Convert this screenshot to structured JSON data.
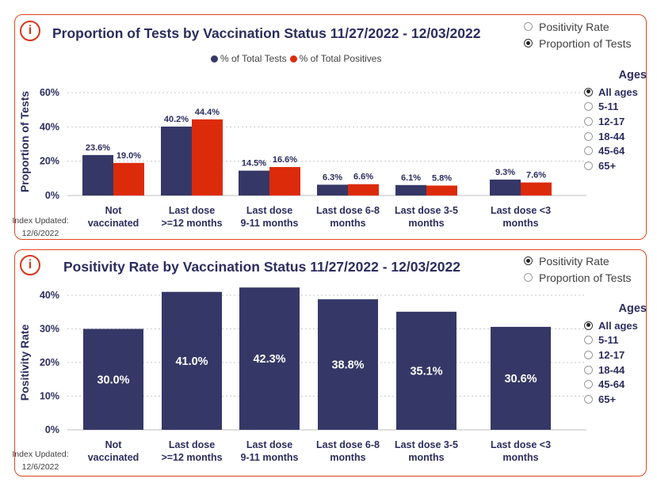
{
  "colors": {
    "navy": "#353866",
    "red": "#dc2b0a",
    "accent": "#e0461e"
  },
  "panel1": {
    "info_icon": "i",
    "title": "Proportion of Tests by Vaccination Status 11/27/2022 - 12/03/2022",
    "toggle": [
      {
        "label": "Positivity Rate",
        "selected": false
      },
      {
        "label": "Proportion of Tests",
        "selected": true
      }
    ],
    "legend": [
      "% of Total Tests",
      "% of Total Positives"
    ],
    "ages_title": "Ages",
    "ages": [
      {
        "label": "All ages",
        "selected": true
      },
      {
        "label": "5-11",
        "selected": false
      },
      {
        "label": "12-17",
        "selected": false
      },
      {
        "label": "18-44",
        "selected": false
      },
      {
        "label": "45-64",
        "selected": false
      },
      {
        "label": "65+",
        "selected": false
      }
    ],
    "index_label": "Index Updated:",
    "index_date": "12/6/2022"
  },
  "panel2": {
    "info_icon": "i",
    "title": "Positivity Rate by Vaccination Status 11/27/2022 - 12/03/2022",
    "toggle": [
      {
        "label": "Positivity Rate",
        "selected": true
      },
      {
        "label": "Proportion of Tests",
        "selected": false
      }
    ],
    "ages_title": "Ages",
    "ages": [
      {
        "label": "All ages",
        "selected": true
      },
      {
        "label": "5-11",
        "selected": false
      },
      {
        "label": "12-17",
        "selected": false
      },
      {
        "label": "18-44",
        "selected": false
      },
      {
        "label": "45-64",
        "selected": false
      },
      {
        "label": "65+",
        "selected": false
      }
    ],
    "index_label": "Index Updated:",
    "index_date": "12/6/2022"
  },
  "chart_data": [
    {
      "type": "bar",
      "title": "Proportion of Tests by Vaccination Status 11/27/2022 - 12/03/2022",
      "ylabel": "Proportion of Tests",
      "ylim": [
        0,
        60
      ],
      "yticks": [
        0,
        20,
        40,
        60
      ],
      "ytick_labels": [
        "0%",
        "20%",
        "40%",
        "60%"
      ],
      "categories": [
        [
          "Not",
          "vaccinated"
        ],
        [
          "Last dose",
          ">=12 months"
        ],
        [
          "Last dose",
          "9-11 months"
        ],
        [
          "Last dose 6-8",
          "months"
        ],
        [
          "Last dose 3-5",
          "months"
        ],
        [
          "Last dose <3",
          "months"
        ]
      ],
      "series": [
        {
          "name": "% of Total Tests",
          "values": [
            23.6,
            40.2,
            14.5,
            6.3,
            6.1,
            9.3
          ],
          "labels": [
            "23.6%",
            "40.2%",
            "14.5%",
            "6.3%",
            "6.1%",
            "9.3%"
          ]
        },
        {
          "name": "% of Total Positives",
          "values": [
            19.0,
            44.4,
            16.6,
            6.6,
            5.8,
            7.6
          ],
          "labels": [
            "19.0%",
            "44.4%",
            "16.6%",
            "6.6%",
            "5.8%",
            "7.6%"
          ]
        }
      ],
      "grid": true,
      "legend": "top"
    },
    {
      "type": "bar",
      "title": "Positivity Rate by Vaccination Status 11/27/2022 - 12/03/2022",
      "ylabel": "Positivity Rate",
      "ylim": [
        0,
        40
      ],
      "yticks": [
        0,
        10,
        20,
        30,
        40
      ],
      "ytick_labels": [
        "0%",
        "10%",
        "20%",
        "30%",
        "40%"
      ],
      "categories": [
        [
          "Not",
          "vaccinated"
        ],
        [
          "Last dose",
          ">=12 months"
        ],
        [
          "Last dose",
          "9-11 months"
        ],
        [
          "Last dose 6-8",
          "months"
        ],
        [
          "Last dose 3-5",
          "months"
        ],
        [
          "Last dose <3",
          "months"
        ]
      ],
      "series": [
        {
          "values": [
            30.0,
            41.0,
            42.3,
            38.8,
            35.1,
            30.6
          ],
          "labels": [
            "30.0%",
            "41.0%",
            "42.3%",
            "38.8%",
            "35.1%",
            "30.6%"
          ]
        }
      ],
      "grid": true,
      "legend": "none"
    }
  ]
}
